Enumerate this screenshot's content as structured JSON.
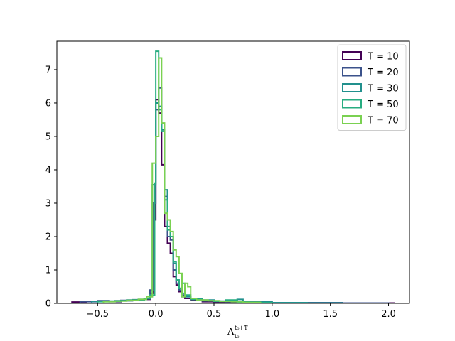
{
  "chart_data": {
    "type": "histogram-step",
    "xlabel": "Λ",
    "xlabel_sup": "t₀+T",
    "xlabel_sub": "t₀",
    "xlim": [
      -0.85,
      2.18
    ],
    "ylim": [
      0,
      7.85
    ],
    "xticks": [
      -0.5,
      0.0,
      0.5,
      1.0,
      1.5,
      2.0
    ],
    "xtick_labels": [
      "−0.5",
      "0.0",
      "0.5",
      "1.0",
      "1.5",
      "2.0"
    ],
    "yticks": [
      0,
      1,
      2,
      3,
      4,
      5,
      6,
      7
    ],
    "ytick_labels": [
      "0",
      "1",
      "2",
      "3",
      "4",
      "5",
      "6",
      "7"
    ],
    "grid": false,
    "legend_position": "top-right",
    "series": [
      {
        "name": "T = 10",
        "color": "#440154",
        "edges": [
          -0.72,
          -0.6,
          -0.5,
          -0.4,
          -0.3,
          -0.2,
          -0.1,
          -0.05,
          -0.02,
          0.0,
          0.025,
          0.05,
          0.075,
          0.1,
          0.125,
          0.15,
          0.175,
          0.2,
          0.225,
          0.25,
          0.3,
          0.4,
          0.5,
          0.6,
          0.7,
          0.8,
          1.0,
          1.5,
          2.05
        ],
        "values": [
          0.04,
          0.06,
          0.07,
          0.05,
          0.08,
          0.1,
          0.12,
          0.3,
          2.5,
          6.1,
          5.7,
          4.15,
          2.3,
          1.8,
          1.5,
          0.8,
          0.55,
          0.35,
          0.2,
          0.15,
          0.1,
          0.05,
          0.04,
          0.03,
          0.02,
          0.02,
          0.01,
          0.01
        ]
      },
      {
        "name": "T = 20",
        "color": "#3b528b",
        "edges": [
          -0.65,
          -0.5,
          -0.4,
          -0.3,
          -0.2,
          -0.1,
          -0.05,
          -0.02,
          0.0,
          0.025,
          0.05,
          0.075,
          0.1,
          0.125,
          0.15,
          0.175,
          0.2,
          0.225,
          0.25,
          0.3,
          0.4,
          0.5,
          0.6,
          0.75,
          1.0,
          1.6,
          2.0
        ],
        "values": [
          0.05,
          0.08,
          0.06,
          0.09,
          0.11,
          0.15,
          0.4,
          3.0,
          5.8,
          6.45,
          5.2,
          3.2,
          2.0,
          1.9,
          1.0,
          0.6,
          0.4,
          0.25,
          0.2,
          0.12,
          0.08,
          0.06,
          0.05,
          0.03,
          0.02,
          0.01
        ]
      },
      {
        "name": "T = 30",
        "color": "#21908d",
        "edges": [
          -0.55,
          -0.45,
          -0.35,
          -0.25,
          -0.15,
          -0.08,
          -0.03,
          0.0,
          0.025,
          0.05,
          0.075,
          0.1,
          0.125,
          0.15,
          0.175,
          0.2,
          0.225,
          0.25,
          0.3,
          0.4,
          0.5,
          0.6,
          0.7,
          0.75,
          1.0,
          1.3,
          1.6
        ],
        "values": [
          0.06,
          0.07,
          0.08,
          0.1,
          0.12,
          0.2,
          3.55,
          6.0,
          5.9,
          5.2,
          3.4,
          2.3,
          2.0,
          1.2,
          0.7,
          0.45,
          0.3,
          0.2,
          0.15,
          0.1,
          0.07,
          0.08,
          0.12,
          0.05,
          0.02,
          0.01
        ]
      },
      {
        "name": "T = 50",
        "color": "#27ad81",
        "edges": [
          -0.5,
          -0.4,
          -0.3,
          -0.2,
          -0.1,
          -0.05,
          -0.01,
          0.0,
          0.025,
          0.05,
          0.075,
          0.1,
          0.125,
          0.15,
          0.175,
          0.2,
          0.225,
          0.25,
          0.3,
          0.4,
          0.5,
          0.6,
          0.7,
          0.8,
          1.0
        ],
        "values": [
          0.05,
          0.06,
          0.08,
          0.1,
          0.14,
          0.25,
          3.6,
          7.55,
          5.8,
          5.15,
          3.1,
          2.2,
          2.0,
          1.25,
          0.7,
          0.45,
          0.6,
          0.25,
          0.12,
          0.08,
          0.06,
          0.1,
          0.04,
          0.02
        ]
      },
      {
        "name": "T = 70",
        "color": "#7ad151",
        "edges": [
          -0.45,
          -0.35,
          -0.25,
          -0.15,
          -0.08,
          -0.03,
          0.0,
          0.025,
          0.05,
          0.075,
          0.1,
          0.125,
          0.15,
          0.175,
          0.2,
          0.225,
          0.25,
          0.275,
          0.3,
          0.35,
          0.45,
          0.55,
          0.65,
          0.75,
          0.9
        ],
        "values": [
          0.05,
          0.07,
          0.09,
          0.12,
          0.2,
          4.2,
          5.0,
          7.35,
          5.4,
          2.7,
          2.5,
          2.15,
          1.6,
          1.4,
          0.9,
          0.2,
          0.6,
          0.5,
          0.15,
          0.1,
          0.08,
          0.06,
          0.05,
          0.03
        ]
      }
    ]
  }
}
